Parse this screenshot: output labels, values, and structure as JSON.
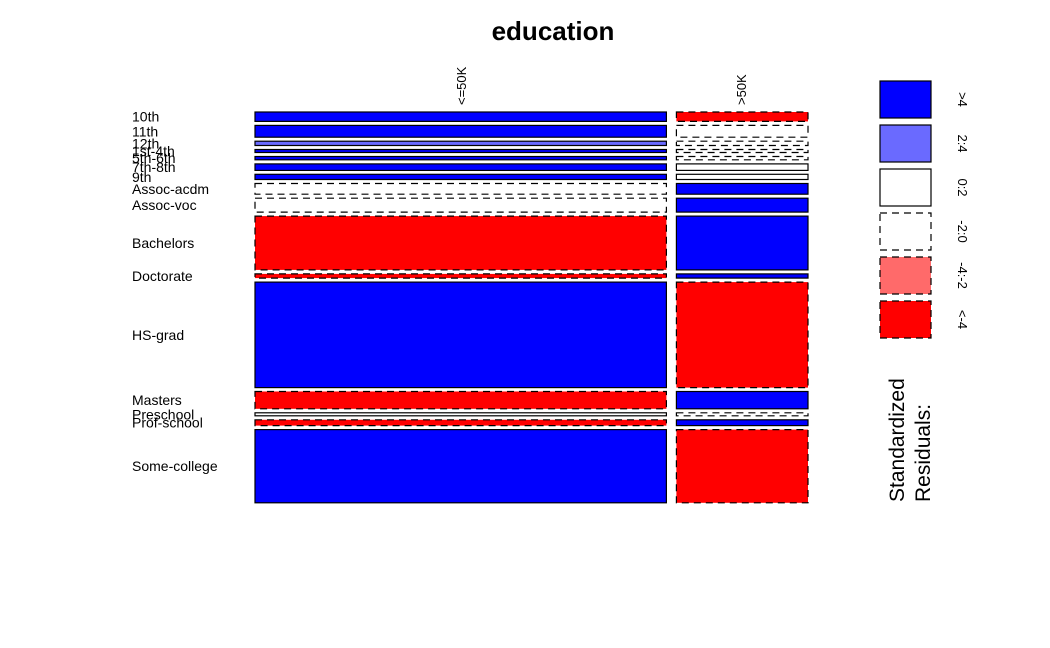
{
  "chart_data": {
    "type": "mosaic",
    "title": "education",
    "columns": [
      "<=50K",
      ">50K"
    ],
    "column_widths": [
      0.7577,
      0.2423
    ],
    "rows": [
      {
        "label": "10th",
        "share": 0.0287,
        "cells": [
          ">4",
          "<-4"
        ]
      },
      {
        "label": "11th",
        "share": 0.0361,
        "cells": [
          ">4",
          "-2:0"
        ]
      },
      {
        "label": "12th",
        "share": 0.0133,
        "cells": [
          "2:4",
          "-2:0"
        ]
      },
      {
        "label": "1st-4th",
        "share": 0.0052,
        "cells": [
          ">4",
          "-2:0"
        ]
      },
      {
        "label": "5th-6th",
        "share": 0.0102,
        "cells": [
          ">4",
          "-2:0"
        ]
      },
      {
        "label": "7th-8th",
        "share": 0.0198,
        "cells": [
          ">4",
          "0:2"
        ]
      },
      {
        "label": "9th",
        "share": 0.0158,
        "cells": [
          ">4",
          "0:2"
        ]
      },
      {
        "label": "Assoc-acdm",
        "share": 0.0328,
        "cells": [
          "-2:0",
          ">4"
        ]
      },
      {
        "label": "Assoc-voc",
        "share": 0.0424,
        "cells": [
          "-2:0",
          ">4"
        ]
      },
      {
        "label": "Bachelors",
        "share": 0.1645,
        "cells": [
          "<-4",
          ">4"
        ]
      },
      {
        "label": "Doctorate",
        "share": 0.0127,
        "cells": [
          "<-4",
          ">4"
        ]
      },
      {
        "label": "HS-grad",
        "share": 0.3225,
        "cells": [
          ">4",
          "<-4"
        ]
      },
      {
        "label": "Masters",
        "share": 0.0529,
        "cells": [
          "<-4",
          ">4"
        ]
      },
      {
        "label": "Preschool",
        "share": 0.0016,
        "cells": [
          "0:2",
          "-2:0"
        ]
      },
      {
        "label": "Prof-school",
        "share": 0.0177,
        "cells": [
          "<-4",
          ">4"
        ]
      },
      {
        "label": "Some-college",
        "share": 0.2239,
        "cells": [
          ">4",
          "<-4"
        ]
      }
    ],
    "legend": {
      "title_lines": [
        "Standardized",
        "Residuals:"
      ],
      "position": "right",
      "items": [
        {
          "label": ">4",
          "fill": "#0000ff",
          "dashed": false
        },
        {
          "label": "2:4",
          "fill": "#6a6aff",
          "dashed": false
        },
        {
          "label": "0:2",
          "fill": "#ffffff",
          "dashed": false
        },
        {
          "label": "-2:0",
          "fill": "#ffffff",
          "dashed": true
        },
        {
          "label": "-4:-2",
          "fill": "#ff6a6a",
          "dashed": true
        },
        {
          "label": "<-4",
          "fill": "#ff0000",
          "dashed": true
        }
      ]
    },
    "colors": {
      ">4": "#0000ff",
      "2:4": "#6a6aff",
      "0:2": "#ffffff",
      "-2:0": "#ffffff",
      "-4:-2": "#ff6a6a",
      "<-4": "#ff0000"
    }
  }
}
